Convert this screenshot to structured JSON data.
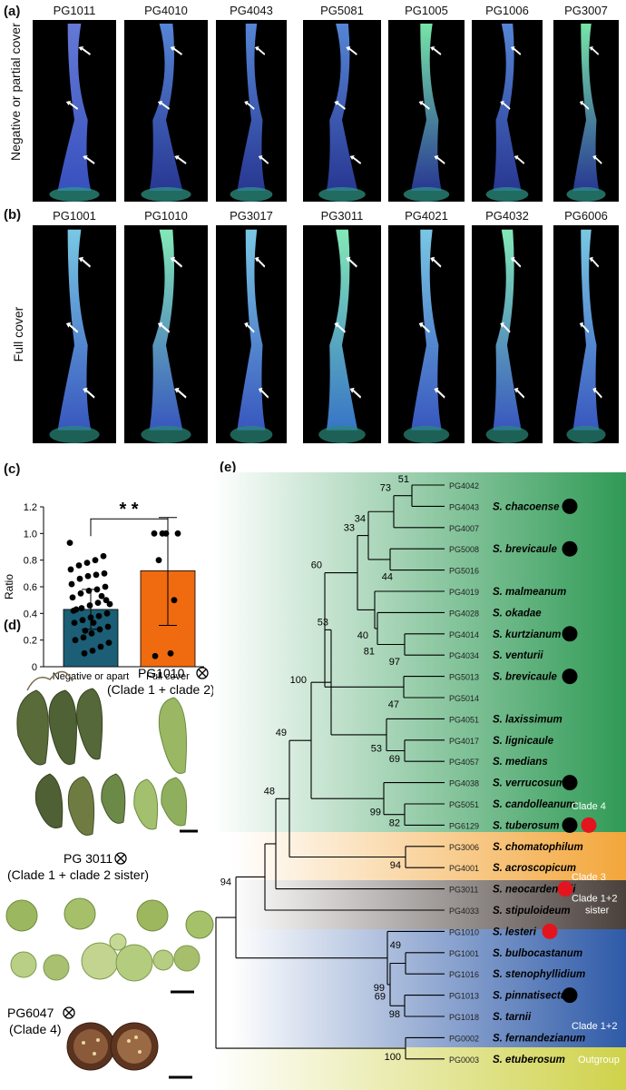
{
  "panel_a": {
    "letter": "(a)",
    "side_label": "Negative or partial cover",
    "samples": [
      "PG1011",
      "PG4010",
      "PG4043",
      "PG5081",
      "PG1005",
      "PG1006",
      "PG3007"
    ]
  },
  "panel_b": {
    "letter": "(b)",
    "side_label": "Full cover",
    "samples": [
      "PG1001",
      "PG1010",
      "PG3017",
      "PG3011",
      "PG4021",
      "PG4032",
      "PG6006"
    ]
  },
  "panel_c": {
    "letter": "(c)",
    "significance": "* *"
  },
  "chart_data": {
    "type": "bar",
    "categories": [
      "Negative or apart",
      "Full cover"
    ],
    "values": [
      0.43,
      0.72
    ],
    "error_low": [
      0.28,
      0.31
    ],
    "error_high": [
      0.58,
      1.12
    ],
    "ylabel": "Ratio",
    "ylim": [
      0,
      1.2
    ],
    "yticks": [
      "0",
      "0.2",
      "0.4",
      "0.6",
      "0.8",
      "1.0",
      "1.2"
    ],
    "colors": [
      "#1b5e75",
      "#f06a0f"
    ],
    "points": [
      [
        0.93,
        0.83,
        0.8,
        0.78,
        0.76,
        0.73,
        0.7,
        0.69,
        0.68,
        0.66,
        0.62,
        0.6,
        0.58,
        0.57,
        0.55,
        0.52,
        0.5,
        0.48,
        0.46,
        0.44,
        0.42,
        0.4,
        0.38,
        0.37,
        0.35,
        0.33,
        0.3,
        0.28,
        0.25,
        0.22,
        0.2,
        0.18,
        0.15,
        0.12,
        0.1,
        0.43,
        0.47,
        0.53,
        0.33,
        0.27
      ],
      [
        1.0,
        1.0,
        1.0,
        1.0,
        0.5,
        0.8,
        0.1,
        0.08
      ]
    ]
  },
  "panel_d": {
    "letter": "(d)",
    "fruit_groups": [
      {
        "sample": "PG1010",
        "clade": "(Clade 1 + clade 2)"
      },
      {
        "sample": "PG 3011",
        "clade": "(Clade 1 + clade 2 sister)"
      },
      {
        "sample": "PG6047",
        "clade": "(Clade 4)"
      }
    ]
  },
  "panel_e": {
    "letter": "(e)",
    "colors": {
      "clade4": "#2f9a55",
      "clade3": "#f3a63a",
      "clade12sister": "#4a403c",
      "clade12": "#2e5aa8",
      "outgroup": "#cfd24a",
      "marker_black": "#000000",
      "marker_red": "#e4141e"
    },
    "tips": [
      {
        "id": "PG4042",
        "species": "",
        "marker": ""
      },
      {
        "id": "PG4043",
        "species": "S. chacoense",
        "marker": "black"
      },
      {
        "id": "PG4007",
        "species": "",
        "marker": ""
      },
      {
        "id": "PG5008",
        "species": "S. brevicaule",
        "marker": "black"
      },
      {
        "id": "PG5016",
        "species": "",
        "marker": ""
      },
      {
        "id": "PG4019",
        "species": "S. malmeanum",
        "marker": ""
      },
      {
        "id": "PG4028",
        "species": "S. okadae",
        "marker": ""
      },
      {
        "id": "PG4014",
        "species": "S. kurtzianum",
        "marker": "black"
      },
      {
        "id": "PG4034",
        "species": "S. venturii",
        "marker": ""
      },
      {
        "id": "PG5013",
        "species": "S. brevicaule",
        "marker": "black"
      },
      {
        "id": "PG5014",
        "species": "",
        "marker": ""
      },
      {
        "id": "PG4051",
        "species": "S. laxissimum",
        "marker": ""
      },
      {
        "id": "PG4017",
        "species": "S. lignicaule",
        "marker": ""
      },
      {
        "id": "PG4057",
        "species": "S. medians",
        "marker": ""
      },
      {
        "id": "PG4038",
        "species": "S. verrucosum",
        "marker": "black"
      },
      {
        "id": "PG5051",
        "species": "S. candolleanum",
        "marker": ""
      },
      {
        "id": "PG6129",
        "species": "S. tuberosum",
        "marker": "black+red"
      },
      {
        "id": "PG3006",
        "species": "S. chomatophilum",
        "marker": ""
      },
      {
        "id": "PG4001",
        "species": "S. acroscopicum",
        "marker": ""
      },
      {
        "id": "PG3011",
        "species": "S. neocardenasii",
        "marker": "red"
      },
      {
        "id": "PG4033",
        "species": "S. stipuloideum",
        "marker": ""
      },
      {
        "id": "PG1010",
        "species": "S. lesteri",
        "marker": "red"
      },
      {
        "id": "PG1001",
        "species": "S. bulbocastanum",
        "marker": ""
      },
      {
        "id": "PG1016",
        "species": "S. stenophyllidium",
        "marker": ""
      },
      {
        "id": "PG1013",
        "species": "S. pinnatisectum",
        "marker": "black"
      },
      {
        "id": "PG1018",
        "species": "S. tarnii",
        "marker": ""
      },
      {
        "id": "PG0002",
        "species": "S. fernandezianum",
        "marker": ""
      },
      {
        "id": "PG0003",
        "species": "S. etuberosum",
        "marker": ""
      }
    ],
    "bootstrap": [
      "51",
      "73",
      "34",
      "44",
      "33",
      "40",
      "81",
      "97",
      "60",
      "47",
      "53",
      "53",
      "69",
      "100",
      "99",
      "82",
      "49",
      "48",
      "94",
      "94",
      "49",
      "99",
      "69",
      "98",
      "100"
    ],
    "clade_labels": [
      "Clade 4",
      "Clade 3",
      "Clade 1+2",
      "sister",
      "Clade 1+2",
      "Outgroup"
    ]
  }
}
